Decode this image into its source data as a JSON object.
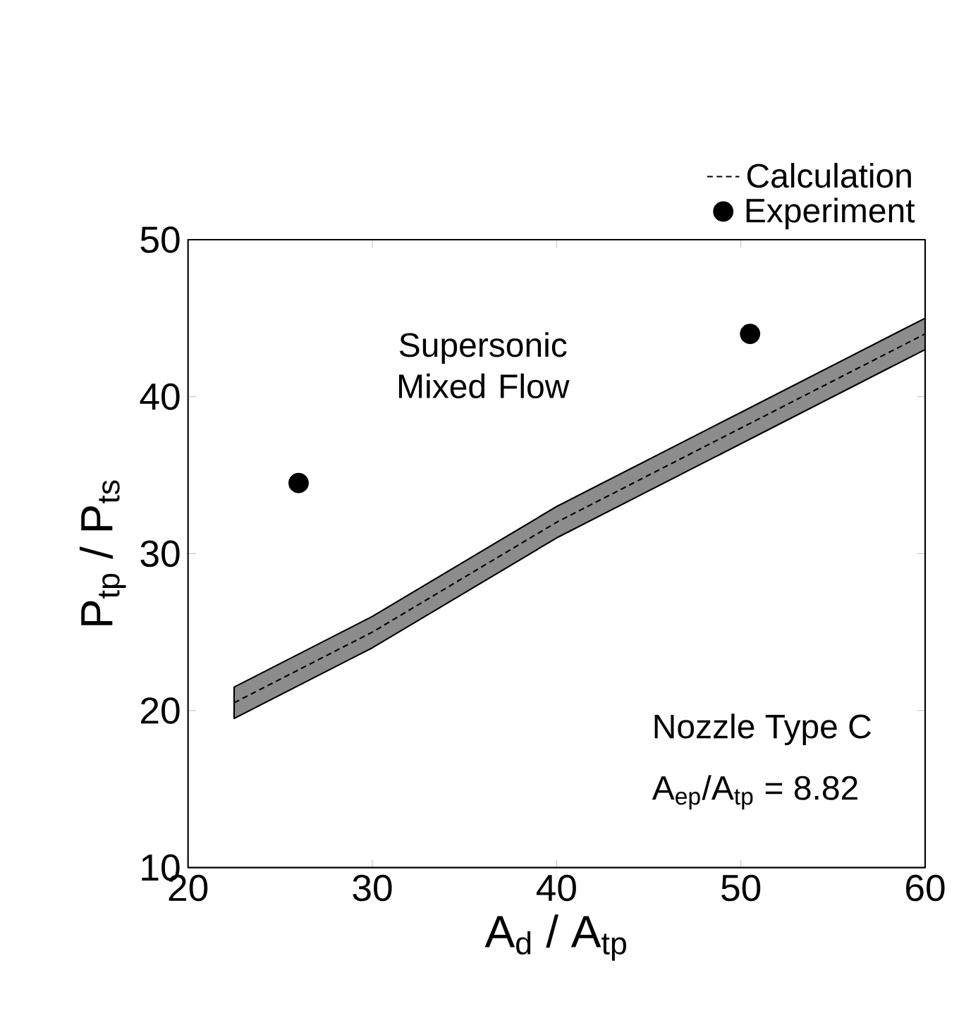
{
  "chart_data": {
    "type": "line",
    "xlabel": "A$_{d}$ / A$_{tp}$",
    "ylabel": "P$_{tp}$ / P$_{ts}$",
    "xlim": [
      20,
      60
    ],
    "xticks": [
      20,
      30,
      40,
      50,
      60
    ],
    "ylim": [
      10,
      50
    ],
    "yticks": [
      10,
      20,
      30,
      40,
      50
    ],
    "series": [
      {
        "name": "Calculation",
        "type": "line",
        "color": "#000000",
        "line_style": "dashed",
        "x": [
          22.5,
          30,
          40,
          50,
          60
        ],
        "values": [
          20.5,
          25,
          32,
          38,
          44
        ],
        "lower": [
          19.5,
          24,
          31,
          37,
          43
        ],
        "upper": [
          21.5,
          26,
          33,
          39,
          45
        ]
      },
      {
        "name": "Experiment",
        "type": "scatter",
        "color": "#000000",
        "x": [
          26,
          50.5
        ],
        "values": [
          34.5,
          44
        ]
      }
    ],
    "annotations": [
      "Supersonic Mixed Flow",
      "Nozzle Type C",
      "A$_{ep}$/A$_{tp}$ = 8.82"
    ],
    "legend": "top right",
    "grid": false
  }
}
